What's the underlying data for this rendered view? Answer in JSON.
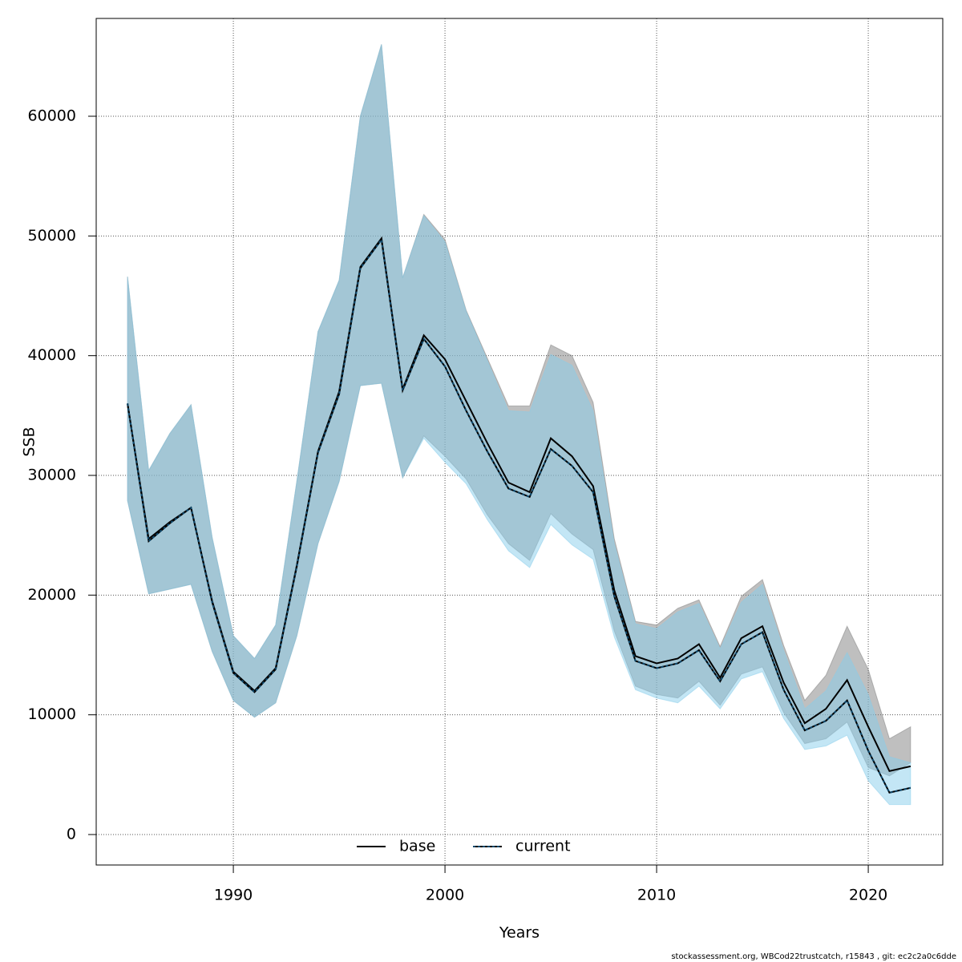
{
  "chart_data": {
    "type": "line_band",
    "x_label": "Years",
    "y_label": "SSB",
    "footnote": "stockassessment.org, WBCod22trustcatch, r15843 , git: ec2c2a0c6dde",
    "x": [
      1985,
      1986,
      1987,
      1988,
      1989,
      1990,
      1991,
      1992,
      1993,
      1994,
      1995,
      1996,
      1997,
      1998,
      1999,
      2000,
      2001,
      2002,
      2003,
      2004,
      2005,
      2006,
      2007,
      2008,
      2009,
      2010,
      2011,
      2012,
      2013,
      2014,
      2015,
      2016,
      2017,
      2018,
      2019,
      2020,
      2021,
      2022
    ],
    "xlim": [
      1983.52,
      2023.52
    ],
    "xticks": [
      1990,
      2000,
      2010,
      2020
    ],
    "ylim": [
      -2545,
      68170
    ],
    "yticks": [
      0,
      10000,
      20000,
      30000,
      40000,
      50000,
      60000
    ],
    "grid": true,
    "legend": "bottom",
    "series": [
      {
        "name": "base",
        "color": "#000000",
        "dash": "solid",
        "band_color": "rgba(128,128,128,0.5)",
        "values": [
          36000,
          24700,
          26100,
          27300,
          19500,
          13600,
          12000,
          13900,
          22500,
          32000,
          37000,
          47400,
          49800,
          37200,
          41700,
          39700,
          36200,
          32700,
          29400,
          28600,
          33100,
          31600,
          29100,
          20400,
          14900,
          14300,
          14700,
          15900,
          13100,
          16400,
          17400,
          12700,
          9300,
          10500,
          12900,
          9000,
          5300,
          5700
        ],
        "upper": [
          46600,
          30400,
          33500,
          35900,
          24800,
          16600,
          14700,
          17500,
          29500,
          42000,
          46300,
          60000,
          66000,
          46500,
          51800,
          49700,
          43800,
          39800,
          35800,
          35800,
          40900,
          40000,
          36100,
          24700,
          17800,
          17500,
          18900,
          19600,
          15700,
          19900,
          21300,
          15800,
          11200,
          13300,
          17400,
          13800,
          8000,
          9000
        ],
        "lower": [
          27900,
          20100,
          20500,
          20900,
          15300,
          11200,
          9800,
          11000,
          16600,
          24300,
          29500,
          37500,
          37700,
          29800,
          33300,
          31600,
          29700,
          26700,
          24300,
          22900,
          26800,
          25100,
          23800,
          17000,
          12400,
          11700,
          11400,
          12800,
          10800,
          13400,
          14000,
          10200,
          7600,
          8000,
          9400,
          5600,
          4900,
          6000
        ]
      },
      {
        "name": "current",
        "color": "#0f4a6e",
        "dash": "dotted",
        "band_color": "rgba(135,206,235,0.5)",
        "values": [
          36000,
          24500,
          26000,
          27300,
          19400,
          13500,
          11900,
          13800,
          22400,
          31900,
          36800,
          47300,
          49700,
          37100,
          41400,
          39100,
          35400,
          32000,
          28900,
          28200,
          32200,
          30800,
          28600,
          19900,
          14500,
          13900,
          14300,
          15400,
          12800,
          15900,
          16900,
          12100,
          8700,
          9500,
          11200,
          7000,
          3500,
          3900
        ],
        "upper": [
          46600,
          30400,
          33500,
          35900,
          24800,
          16600,
          14700,
          17500,
          29500,
          42000,
          46300,
          60000,
          66000,
          46500,
          51700,
          49500,
          43700,
          39600,
          35400,
          35300,
          40100,
          39200,
          35400,
          24300,
          17600,
          17200,
          18600,
          19300,
          15500,
          19400,
          20900,
          15400,
          10500,
          12000,
          15200,
          11700,
          6500,
          6000
        ],
        "lower": [
          27900,
          20100,
          20500,
          20900,
          15300,
          11200,
          9800,
          11000,
          16600,
          24300,
          29500,
          37500,
          37700,
          29800,
          33100,
          31100,
          29300,
          26300,
          23700,
          22300,
          25900,
          24200,
          23000,
          16500,
          12100,
          11400,
          11000,
          12400,
          10500,
          13000,
          13600,
          9700,
          7100,
          7400,
          8300,
          4500,
          2500,
          2500
        ]
      }
    ]
  }
}
